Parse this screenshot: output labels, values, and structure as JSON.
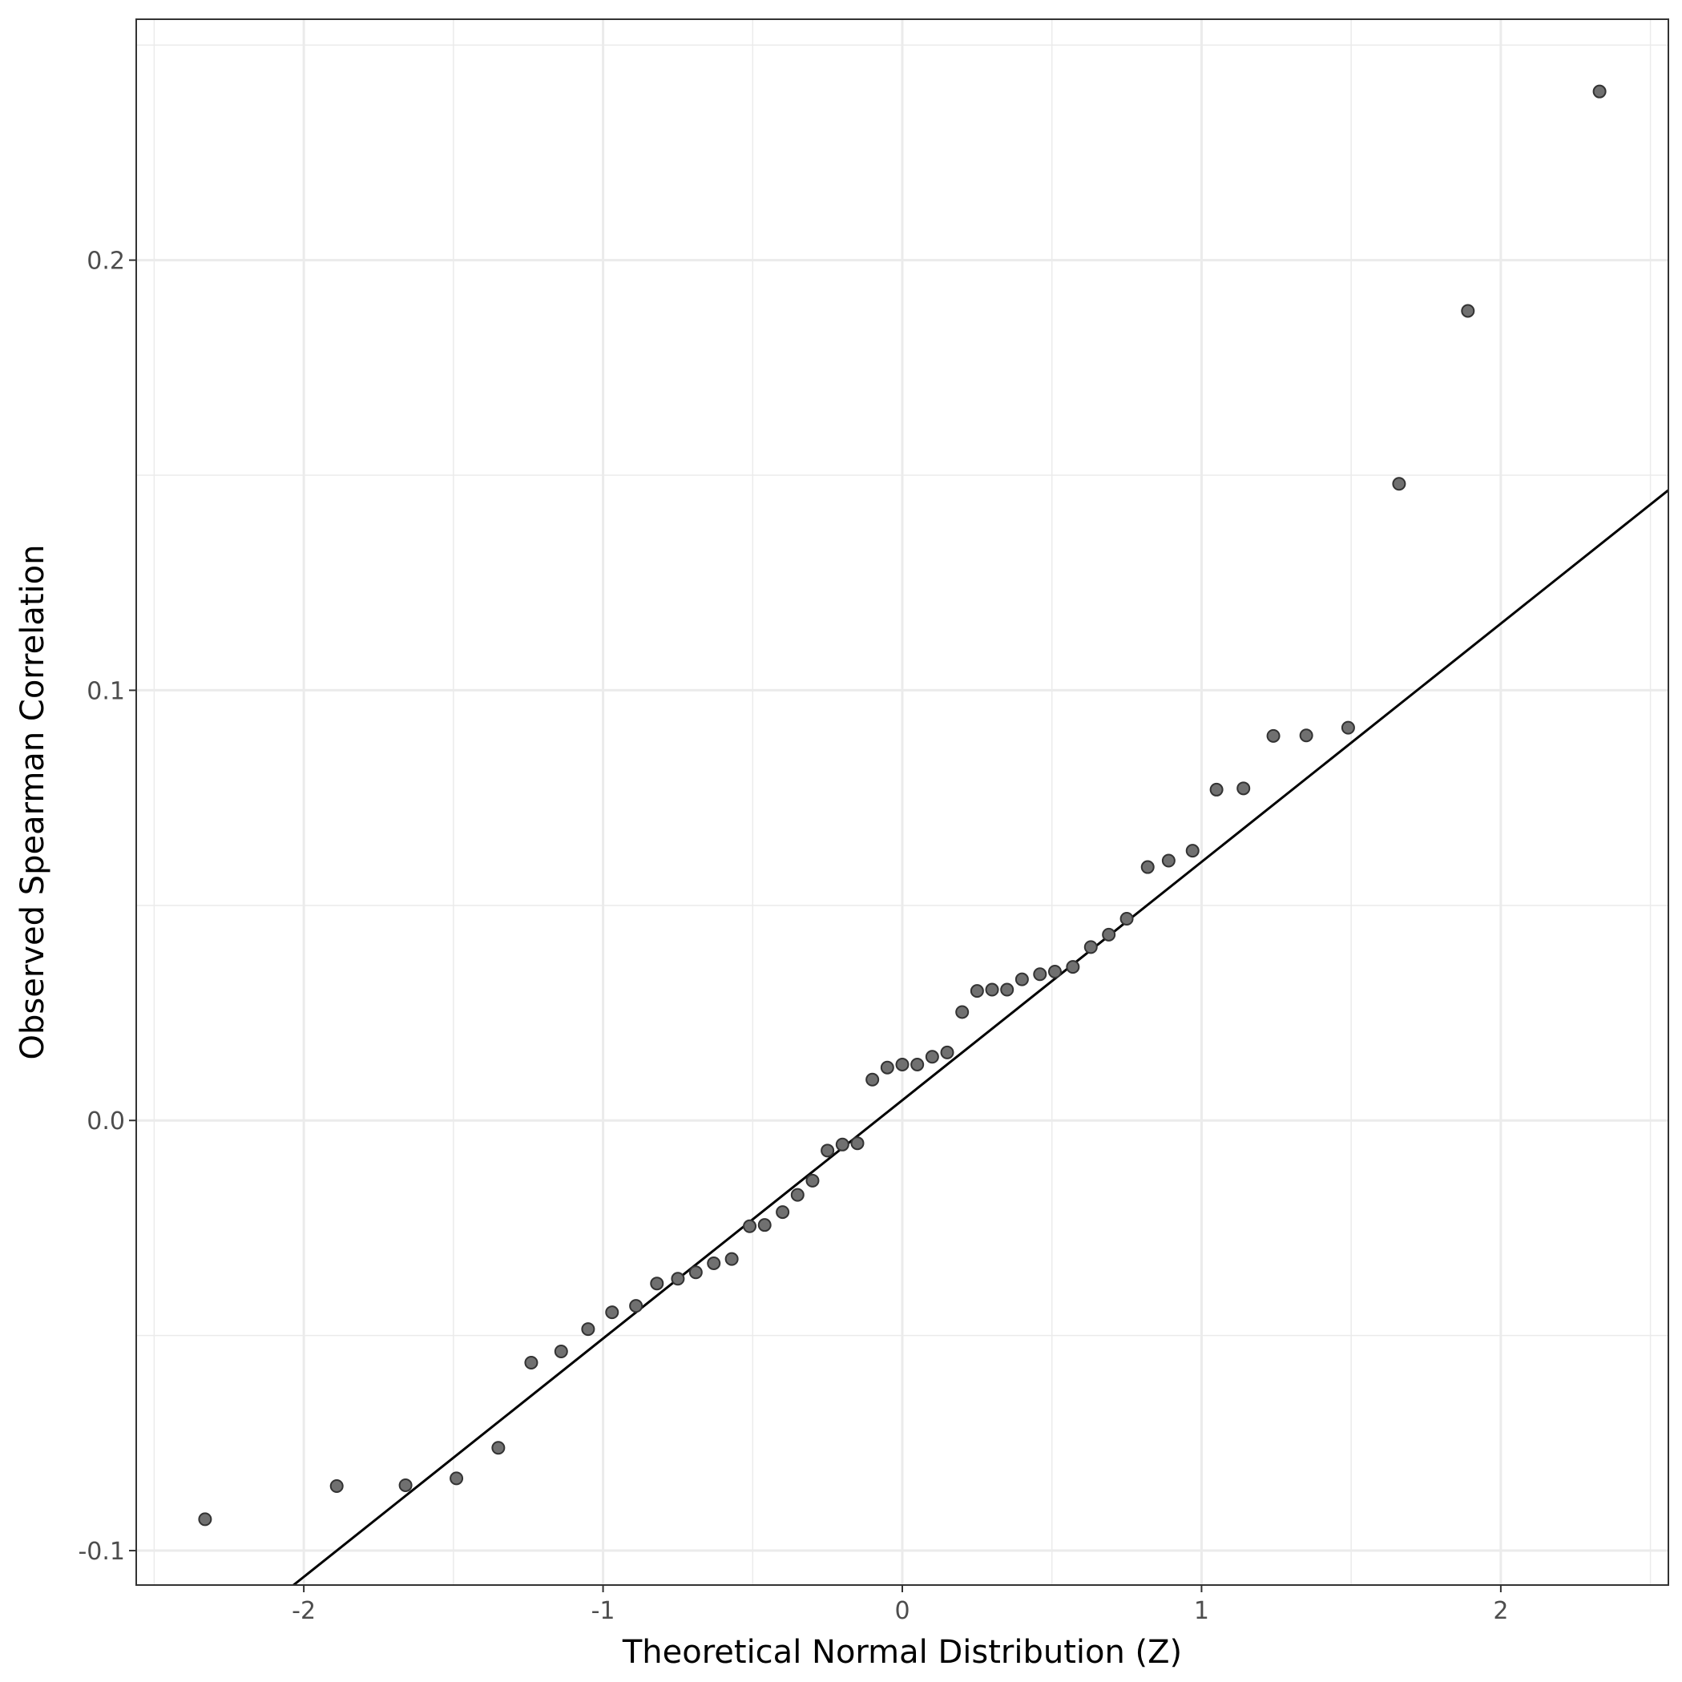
{
  "chart_data": {
    "type": "scatter",
    "title": "",
    "xlabel": "Theoretical Normal Distribution (Z)",
    "ylabel": "Observed Spearman Correlation",
    "xlim": [
      -2.56,
      2.56
    ],
    "ylim": [
      -0.108,
      0.256
    ],
    "x_ticks": [
      {
        "value": -2,
        "label": "-2"
      },
      {
        "value": -1,
        "label": "-1"
      },
      {
        "value": 0,
        "label": "0"
      },
      {
        "value": 1,
        "label": "1"
      },
      {
        "value": 2,
        "label": "2"
      }
    ],
    "y_ticks": [
      {
        "value": -0.1,
        "label": "-0.1"
      },
      {
        "value": 0.0,
        "label": "0.0"
      },
      {
        "value": 0.1,
        "label": "0.1"
      },
      {
        "value": 0.2,
        "label": "0.2"
      }
    ],
    "grid": true,
    "points": [
      {
        "x": -2.33,
        "y": -0.0927
      },
      {
        "x": -1.89,
        "y": -0.085
      },
      {
        "x": -1.66,
        "y": -0.0848
      },
      {
        "x": -1.49,
        "y": -0.0832
      },
      {
        "x": -1.35,
        "y": -0.0761
      },
      {
        "x": -1.24,
        "y": -0.0563
      },
      {
        "x": -1.14,
        "y": -0.0537
      },
      {
        "x": -1.05,
        "y": -0.0485
      },
      {
        "x": -0.97,
        "y": -0.0446
      },
      {
        "x": -0.89,
        "y": -0.0431
      },
      {
        "x": -0.82,
        "y": -0.0379
      },
      {
        "x": -0.75,
        "y": -0.0368
      },
      {
        "x": -0.69,
        "y": -0.0353
      },
      {
        "x": -0.63,
        "y": -0.0332
      },
      {
        "x": -0.57,
        "y": -0.0322
      },
      {
        "x": -0.51,
        "y": -0.0246
      },
      {
        "x": -0.46,
        "y": -0.0243
      },
      {
        "x": -0.4,
        "y": -0.0213
      },
      {
        "x": -0.35,
        "y": -0.0173
      },
      {
        "x": -0.3,
        "y": -0.014
      },
      {
        "x": -0.25,
        "y": -0.007
      },
      {
        "x": -0.2,
        "y": -0.0056
      },
      {
        "x": -0.15,
        "y": -0.0053
      },
      {
        "x": -0.1,
        "y": 0.0095
      },
      {
        "x": -0.05,
        "y": 0.0123
      },
      {
        "x": 0.0,
        "y": 0.013
      },
      {
        "x": 0.05,
        "y": 0.013
      },
      {
        "x": 0.1,
        "y": 0.0148
      },
      {
        "x": 0.15,
        "y": 0.0158
      },
      {
        "x": 0.2,
        "y": 0.0252
      },
      {
        "x": 0.25,
        "y": 0.0301
      },
      {
        "x": 0.3,
        "y": 0.0304
      },
      {
        "x": 0.35,
        "y": 0.0304
      },
      {
        "x": 0.4,
        "y": 0.0328
      },
      {
        "x": 0.46,
        "y": 0.034
      },
      {
        "x": 0.51,
        "y": 0.0346
      },
      {
        "x": 0.57,
        "y": 0.0357
      },
      {
        "x": 0.63,
        "y": 0.0403
      },
      {
        "x": 0.69,
        "y": 0.0432
      },
      {
        "x": 0.75,
        "y": 0.0469
      },
      {
        "x": 0.82,
        "y": 0.0589
      },
      {
        "x": 0.89,
        "y": 0.0604
      },
      {
        "x": 0.97,
        "y": 0.0627
      },
      {
        "x": 1.05,
        "y": 0.0769
      },
      {
        "x": 1.14,
        "y": 0.0772
      },
      {
        "x": 1.24,
        "y": 0.0894
      },
      {
        "x": 1.35,
        "y": 0.0895
      },
      {
        "x": 1.49,
        "y": 0.0913
      },
      {
        "x": 1.66,
        "y": 0.148
      },
      {
        "x": 1.89,
        "y": 0.1882
      },
      {
        "x": 2.33,
        "y": 0.2392
      }
    ],
    "reference_line": {
      "intercept": 0.0047,
      "slope": 0.0554
    },
    "colors": {
      "point_fill": "#707070",
      "point_stroke": "#333333",
      "line": "#000000",
      "grid": "#ebebeb",
      "panel_border": "#333333"
    }
  }
}
